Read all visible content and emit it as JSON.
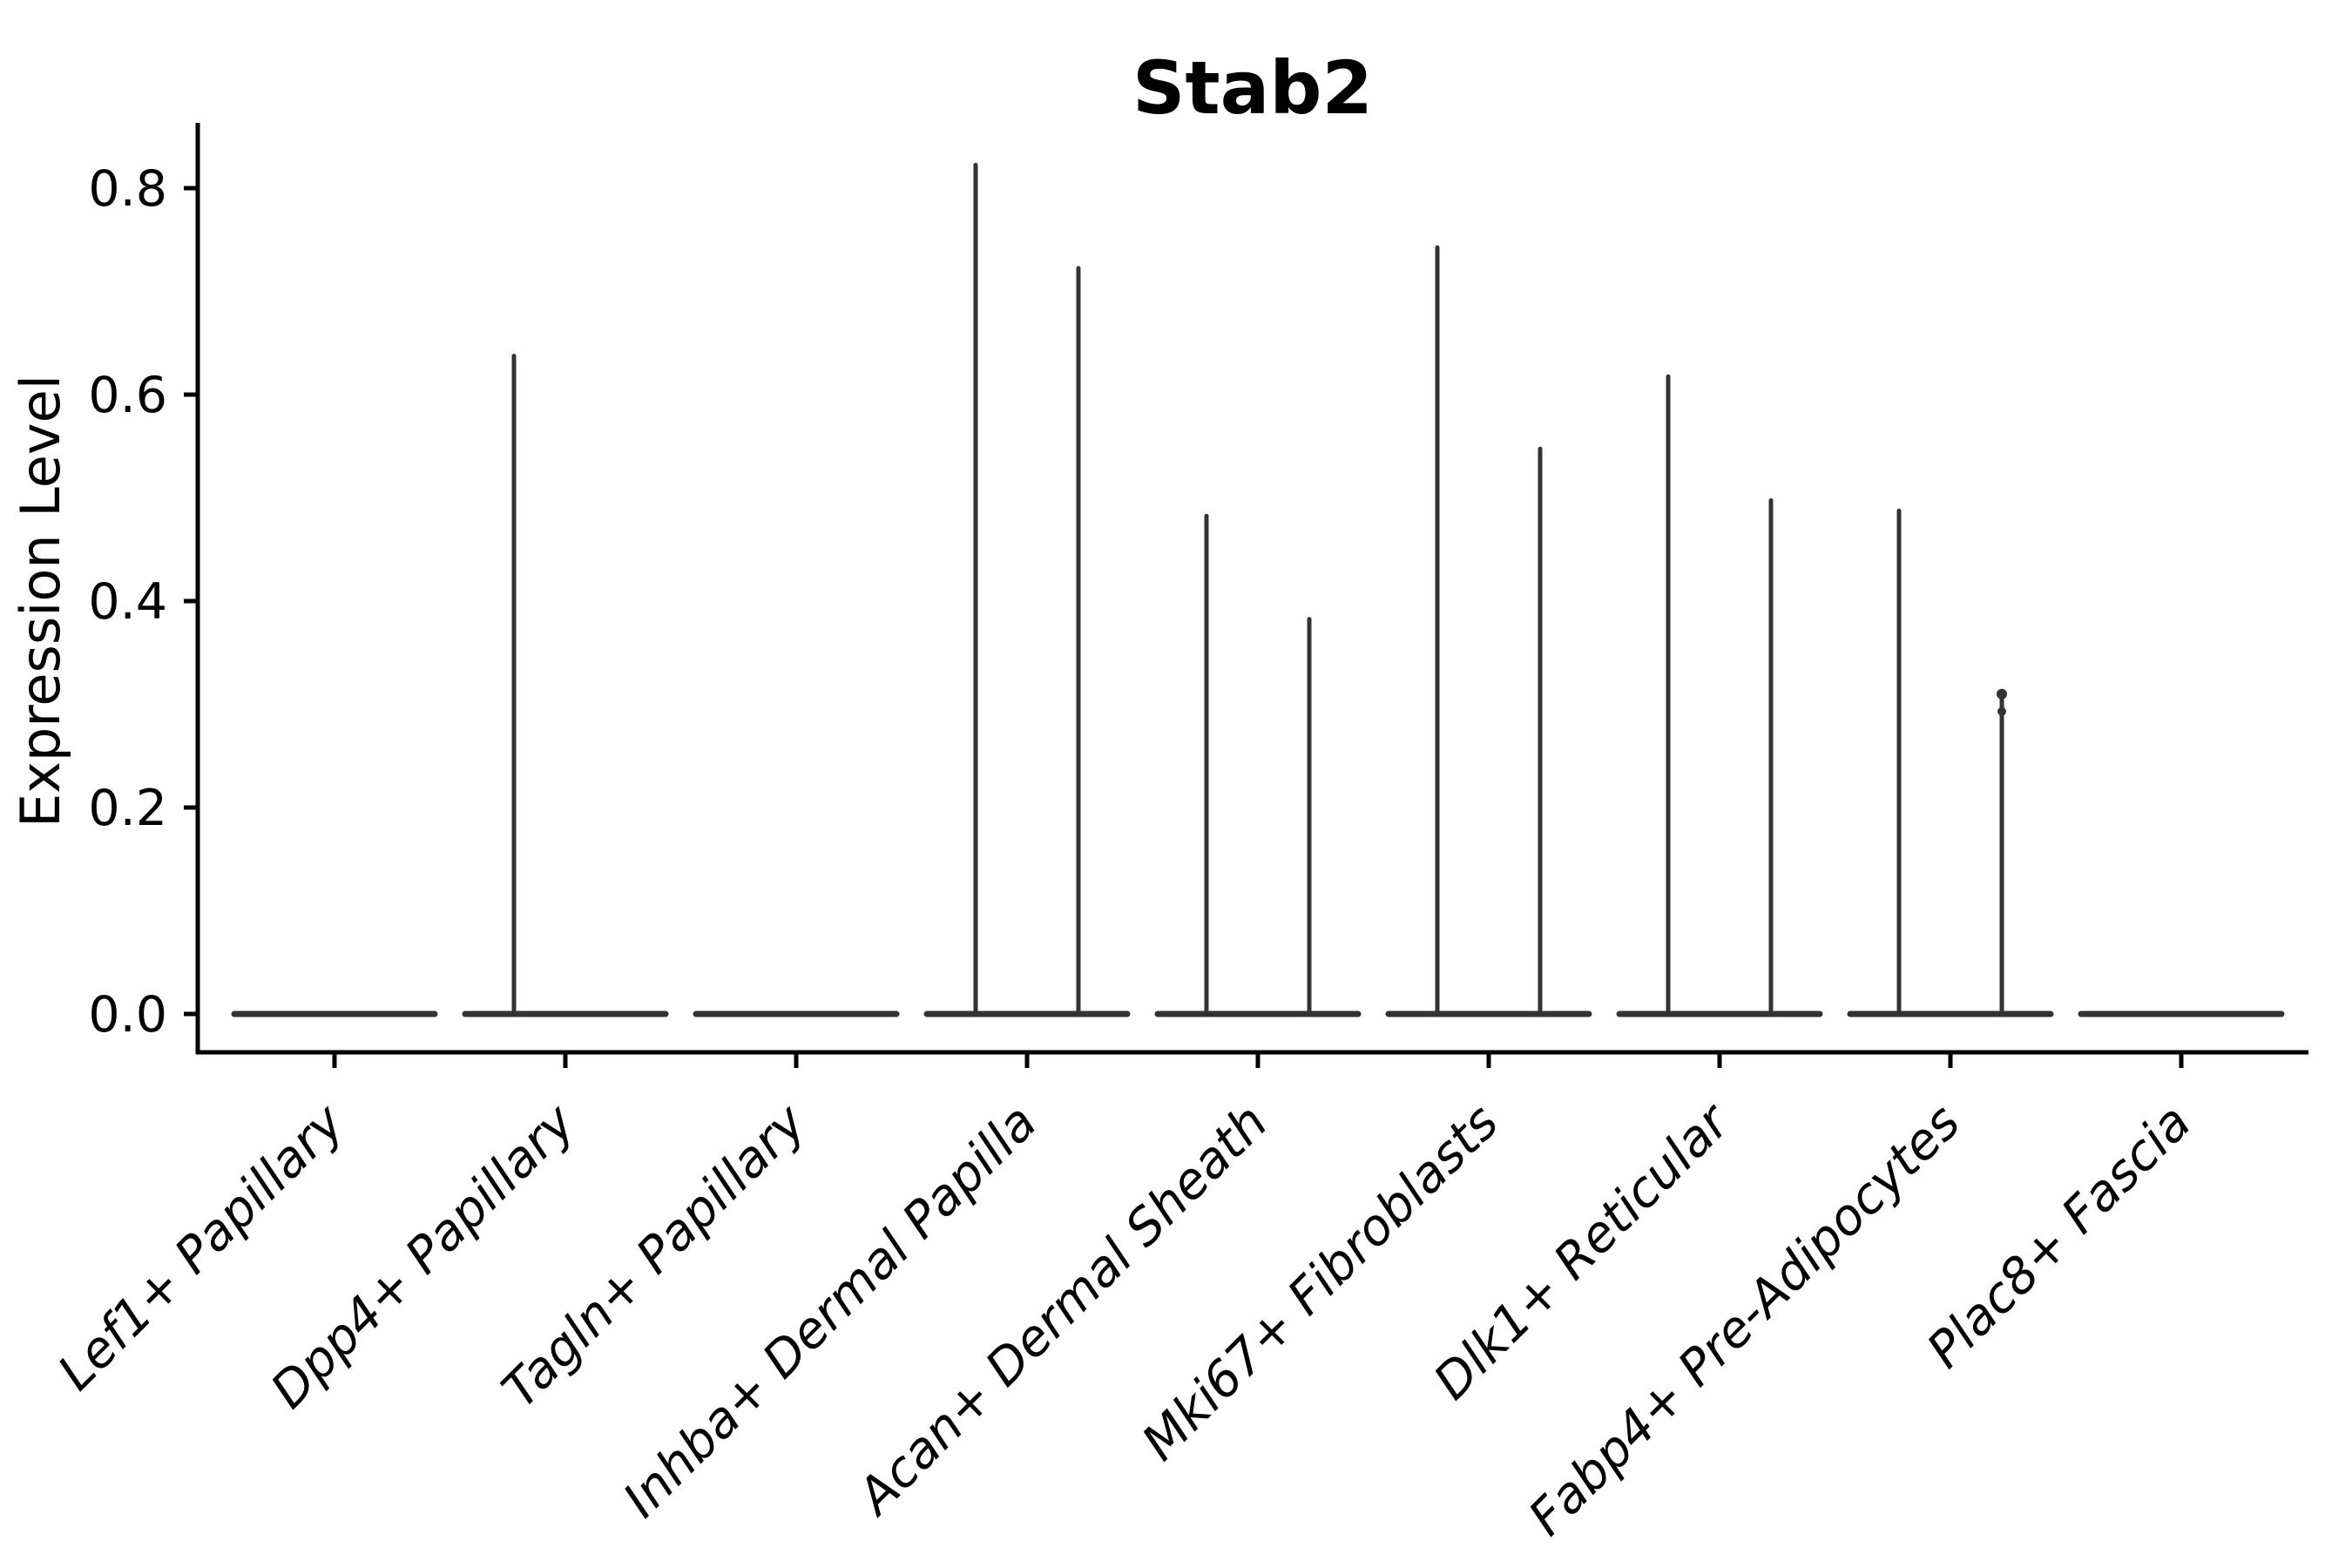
{
  "title": "Stab2",
  "y_axis": {
    "label": "Expression Level",
    "tick_labels": [
      "0.0",
      "0.2",
      "0.4",
      "0.6",
      "0.8"
    ]
  },
  "x_axis": {
    "tick_labels": [
      "Lef1+ Papillary",
      "Dpp4+ Papillary",
      "Tagln+ Papillary",
      "Inhba+ Dermal Papilla",
      "Acan+ Dermal Sheath",
      "Mki67+ Fibroblasts",
      "Dlk1+ Reticular",
      "Fabp4+ Pre-Adipocytes",
      "Plac8+ Fascia"
    ],
    "label_rotation_deg": 45,
    "label_style": "italic"
  },
  "colors": {
    "violin": "#333333",
    "axis": "#000000",
    "text": "#000000",
    "background": "#ffffff"
  },
  "chart_data": {
    "type": "violin",
    "title": "Stab2",
    "xlabel": "",
    "ylabel": "Expression Level",
    "categories": [
      "Lef1+ Papillary",
      "Dpp4+ Papillary",
      "Tagln+ Papillary",
      "Inhba+ Dermal Papilla",
      "Acan+ Dermal Sheath",
      "Mki67+ Fibroblasts",
      "Dlk1+ Reticular",
      "Fabp4+ Pre-Adipocytes",
      "Plac8+ Fascia"
    ],
    "y_ticks": [
      0.0,
      0.2,
      0.4,
      0.6,
      0.8
    ],
    "ylim": [
      -0.03,
      0.87
    ],
    "grid": false,
    "legend_position": "none",
    "violins_per_category": 2,
    "description_of_shape": "Each violin collapses to a flat disc at 0 with a thin vertical spike up to the maximum expression value; categories with no expressing cells show only the flat disc at 0.",
    "series": [
      {
        "name": "left-violin",
        "spike_max_values": [
          0,
          0.64,
          0,
          0.825,
          0.485,
          0.745,
          0.62,
          0.49,
          0
        ]
      },
      {
        "name": "right-violin",
        "spike_max_values": [
          0,
          0,
          0,
          0.725,
          0.385,
          0.55,
          0.5,
          0.315,
          0
        ]
      }
    ]
  }
}
